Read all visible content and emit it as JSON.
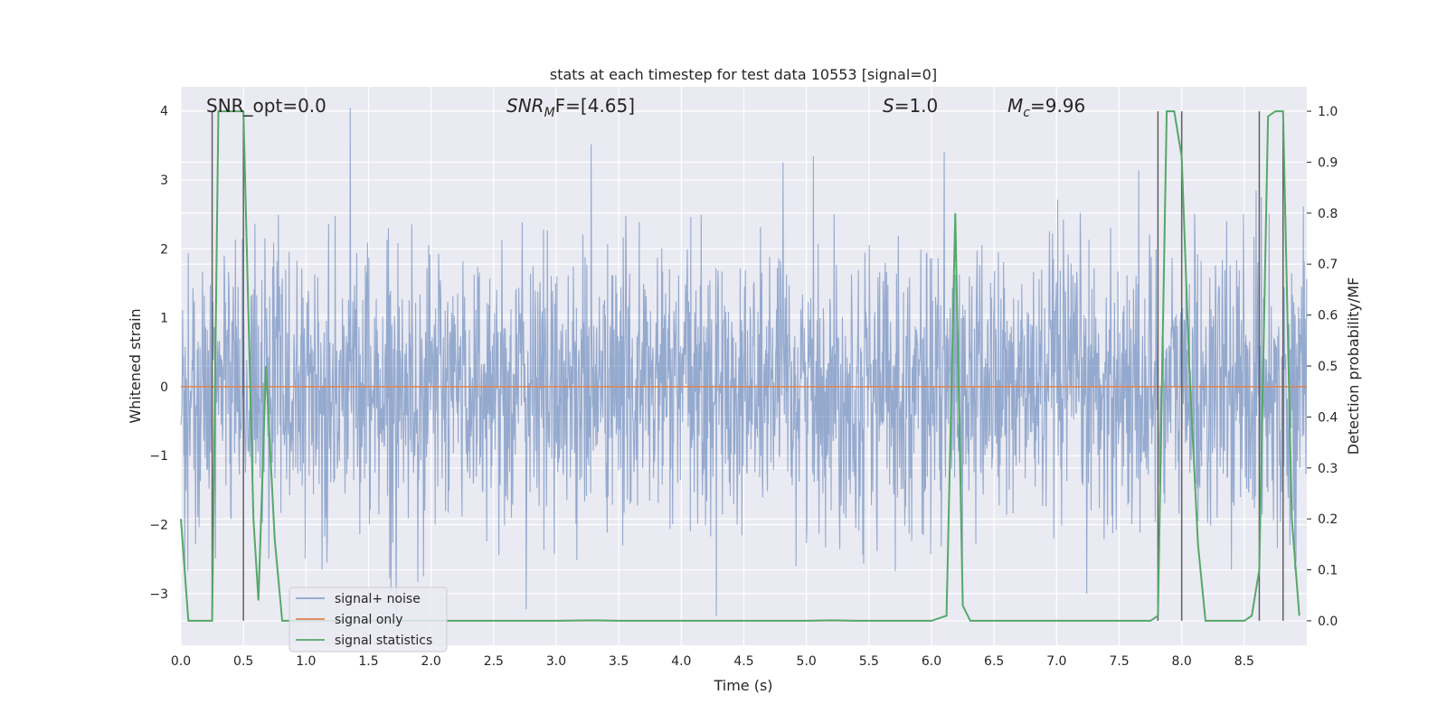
{
  "chart_data": {
    "type": "line",
    "title": "stats at each timestep for test data 10553 [signal=0]",
    "xlabel": "Time (s)",
    "ylabel_left": "Whitened strain",
    "ylabel_right": "Detection probability/MF",
    "xlim": [
      0.0,
      9.0
    ],
    "ylim_left": [
      -3.75,
      4.35
    ],
    "ylim_right": [
      -0.048,
      1.048
    ],
    "x_ticks": [
      "0.0",
      "0.5",
      "1.0",
      "1.5",
      "2.0",
      "2.5",
      "3.0",
      "3.5",
      "4.0",
      "4.5",
      "5.0",
      "5.5",
      "6.0",
      "6.5",
      "7.0",
      "7.5",
      "8.0",
      "8.5"
    ],
    "y_ticks_left": [
      "4",
      "3",
      "2",
      "1",
      "0",
      "−1",
      "−2",
      "−3"
    ],
    "y_ticks_right": [
      "1.0",
      "0.9",
      "0.8",
      "0.7",
      "0.6",
      "0.5",
      "0.4",
      "0.3",
      "0.2",
      "0.1",
      "0.0"
    ],
    "grid": true,
    "annotations": {
      "snr_opt": "SNR_opt=0.0",
      "snr_mf_base": "SNR",
      "snr_mf_sub": "M",
      "snr_mf_rest": "F=[4.65]",
      "s_label": "S",
      "s_value": "=1.0",
      "mc_base": "M",
      "mc_sub": "c",
      "mc_value": "=9.96"
    },
    "legend": {
      "position": "lower-left",
      "entries": [
        "signal+ noise",
        "signal only",
        "signal statistics"
      ]
    },
    "series": [
      {
        "name": "signal+ noise",
        "axis": "left",
        "color": "#4c72b0",
        "alpha": 0.55,
        "description_stats": {
          "mean": 0.0,
          "std": 1.0,
          "duration_s": 9.0,
          "peak_max": 4.05,
          "peak_min": -3.45
        }
      },
      {
        "name": "signal only",
        "axis": "left",
        "color": "#dd8452",
        "x": [
          0.0,
          9.0
        ],
        "y": [
          0.0,
          0.0
        ]
      },
      {
        "name": "signal statistics",
        "axis": "right",
        "color": "#55a868",
        "x": [
          0.0,
          0.06,
          0.25,
          0.3,
          0.5,
          0.58,
          0.62,
          0.68,
          0.75,
          0.81,
          1.0,
          2.0,
          3.0,
          3.3,
          3.5,
          4.0,
          5.0,
          5.2,
          5.4,
          6.0,
          6.12,
          6.19,
          6.25,
          6.31,
          6.5,
          7.0,
          7.5,
          7.75,
          7.81,
          7.88,
          7.94,
          8.0,
          8.06,
          8.13,
          8.19,
          8.25,
          8.5,
          8.56,
          8.62,
          8.69,
          8.75,
          8.81,
          8.88,
          8.94
        ],
        "y": [
          0.2,
          0.0,
          0.0,
          1.0,
          1.0,
          0.2,
          0.04,
          0.5,
          0.16,
          0.0,
          0.0,
          0.0,
          0.0,
          0.001,
          0.0,
          0.0,
          0.0,
          0.001,
          0.0,
          0.0,
          0.01,
          0.8,
          0.03,
          0.0,
          0.0,
          0.0,
          0.0,
          0.0,
          0.01,
          1.0,
          1.0,
          0.91,
          0.5,
          0.15,
          0.0,
          0.0,
          0.0,
          0.01,
          0.1,
          0.99,
          1.0,
          1.0,
          0.2,
          0.01
        ]
      },
      {
        "name": "markers",
        "axis": "right",
        "color": "#606060",
        "x": [
          0.25,
          0.5,
          7.81,
          8.0,
          8.62,
          8.81
        ],
        "y_range": [
          0.0,
          1.0
        ]
      }
    ]
  }
}
